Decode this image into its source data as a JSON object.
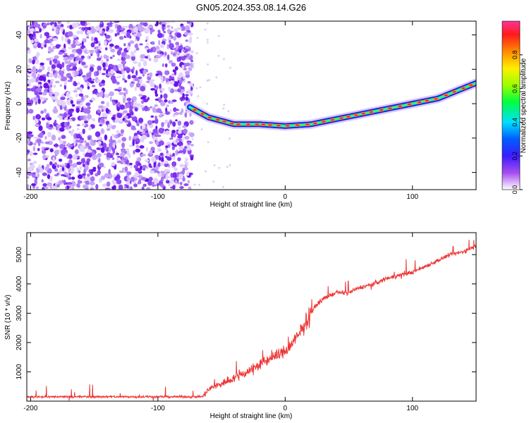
{
  "title": "GN05.2024.353.08.14.G26",
  "chart_data": [
    {
      "type": "heatmap",
      "xlabel": "Height of straight line (km)",
      "ylabel": "Frequency (Hz)",
      "xlim": [
        -203,
        150
      ],
      "ylim": [
        -50,
        48
      ],
      "xticks": [
        -200,
        -100,
        0,
        100
      ],
      "yticks": [
        -40,
        -20,
        0,
        20,
        40
      ],
      "colorbar": {
        "label": "Normalized spectral amplitude",
        "range": [
          0,
          1
        ],
        "ticks": [
          0.0,
          0.2,
          0.4,
          0.6,
          0.8
        ]
      },
      "noise_region_x": [
        -203,
        -73
      ],
      "ridge": {
        "x": [
          -75,
          -60,
          -40,
          -20,
          0,
          20,
          40,
          60,
          80,
          100,
          120,
          140,
          150
        ],
        "frequency": [
          -2,
          -8,
          -12,
          -12,
          -13,
          -12,
          -9,
          -6,
          -3,
          0,
          3,
          9,
          12
        ]
      }
    },
    {
      "type": "line",
      "xlabel": "Height of straight line (km)",
      "ylabel": "SNR (10 * v/v)",
      "xlim": [
        -203,
        150
      ],
      "ylim": [
        0,
        5750
      ],
      "xticks": [
        -200,
        -100,
        0,
        100
      ],
      "yticks": [
        1000,
        2000,
        3000,
        4000,
        5000
      ],
      "color": "#ee3333",
      "series": [
        {
          "x": [
            -203,
            -150,
            -100,
            -65,
            -60,
            -50,
            -40,
            -30,
            -20,
            -10,
            0,
            10,
            20,
            25,
            30,
            40,
            50,
            60,
            70,
            80,
            90,
            100,
            110,
            120,
            130,
            140,
            150
          ],
          "values": [
            150,
            150,
            150,
            150,
            400,
            600,
            800,
            1000,
            1250,
            1500,
            1700,
            2200,
            3000,
            3300,
            3500,
            3700,
            3700,
            3900,
            4000,
            4200,
            4300,
            4400,
            4600,
            4800,
            5000,
            5100,
            5300
          ]
        }
      ]
    }
  ]
}
